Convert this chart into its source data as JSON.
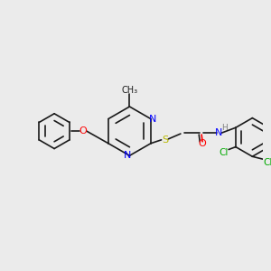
{
  "background_color": "#ebebeb",
  "bond_color": "#1a1a1a",
  "atom_colors": {
    "N": "#0000ff",
    "O": "#ff0000",
    "S": "#b8b800",
    "Cl": "#00aa00",
    "H": "#808080"
  },
  "font_size": 7.5,
  "bond_width": 1.2
}
